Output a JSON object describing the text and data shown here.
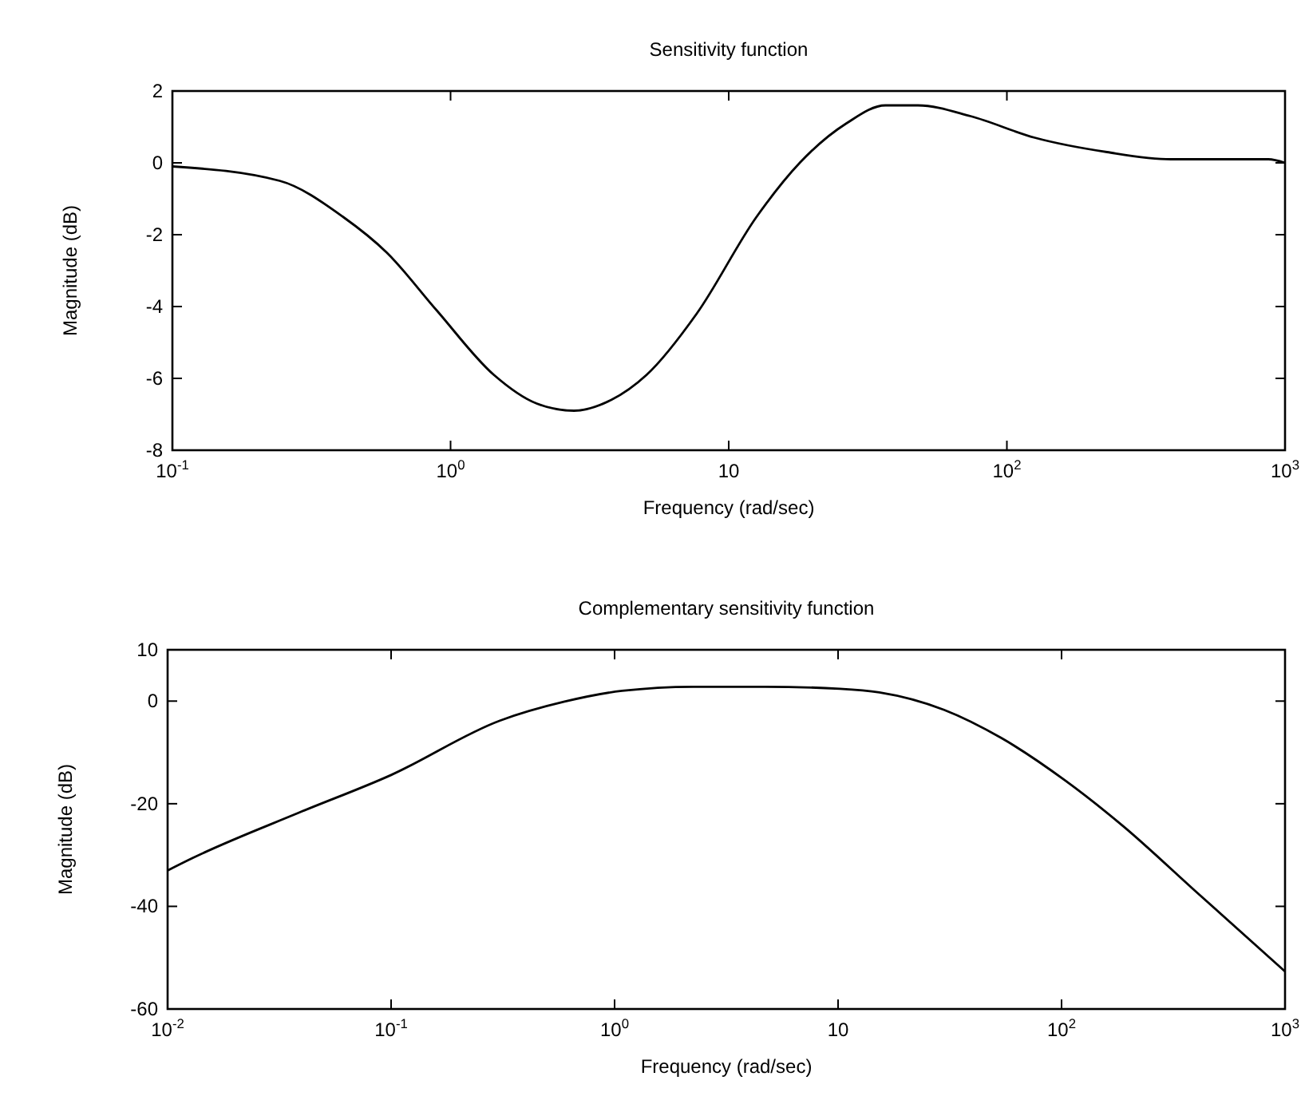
{
  "chart_data": [
    {
      "type": "line",
      "title": "Sensitivity function",
      "xlabel": "Frequency (rad/sec)",
      "ylabel": "Magnitude (dB)",
      "log": "x",
      "grid": false,
      "xlim": [
        0.1,
        1000
      ],
      "xticks": [
        {
          "value": 0.1,
          "label": "10$^{-1}$"
        },
        {
          "value": 1,
          "label": "10$^{0}$"
        },
        10,
        {
          "value": 100,
          "label": "10$^{2}$"
        },
        {
          "value": 1000,
          "label": "10$^{3}$"
        }
      ],
      "ylim": [
        -8,
        2
      ],
      "yticks": [
        -8,
        -6,
        -4,
        -2,
        0,
        2
      ],
      "series": [
        {
          "color": "#000000",
          "x": [
            0.1,
            0.243,
            0.41,
            0.59,
            0.89,
            1.43,
            2.04,
            2.78,
            3.78,
            5.07,
            7.67,
            12.6,
            18,
            26.5,
            36.6,
            47.9,
            74,
            126,
            229,
            389,
            871,
            1000
          ],
          "values": [
            -0.1,
            -0.5,
            -1.5,
            -2.5,
            -4.1,
            -5.9,
            -6.7,
            -6.9,
            -6.6,
            -5.9,
            -4.2,
            -1.5,
            0,
            1.1,
            1.6,
            1.6,
            1.3,
            0.7,
            0.3,
            0.1,
            0.1,
            0
          ]
        }
      ]
    },
    {
      "type": "line",
      "title": "Complementary sensitivity function",
      "xlabel": "Frequency (rad/sec)",
      "ylabel": "Magnitude (dB)",
      "log": "x",
      "grid": false,
      "xlim": [
        0.01,
        1000
      ],
      "xticks": [
        {
          "value": 0.01,
          "label": "10$^{-2}$"
        },
        {
          "value": 0.1,
          "label": "10$^{-1}$"
        },
        {
          "value": 1,
          "label": "10$^{0}$"
        },
        10,
        {
          "value": 100,
          "label": "10$^{2}$"
        },
        {
          "value": 1000,
          "label": "10$^{3}$"
        }
      ],
      "ylim": [
        -60,
        10
      ],
      "yticks": [
        -60,
        -40,
        -20,
        0,
        10
      ],
      "series": [
        {
          "color": "#000000",
          "x": [
            0.01,
            0.0129,
            0.0389,
            0.1,
            0.307,
            0.597,
            1.08,
            2.25,
            4.71,
            10.2,
            15.3,
            29.8,
            53.8,
            104,
            189,
            394,
            1000
          ],
          "values": [
            -33,
            -30.6,
            -21.7,
            -14.4,
            -3.8,
            -0.1,
            2,
            2.8,
            2.8,
            2.4,
            1.7,
            -1.7,
            -7.2,
            -15.5,
            -24.4,
            -36.9,
            -52.7
          ]
        }
      ]
    }
  ]
}
